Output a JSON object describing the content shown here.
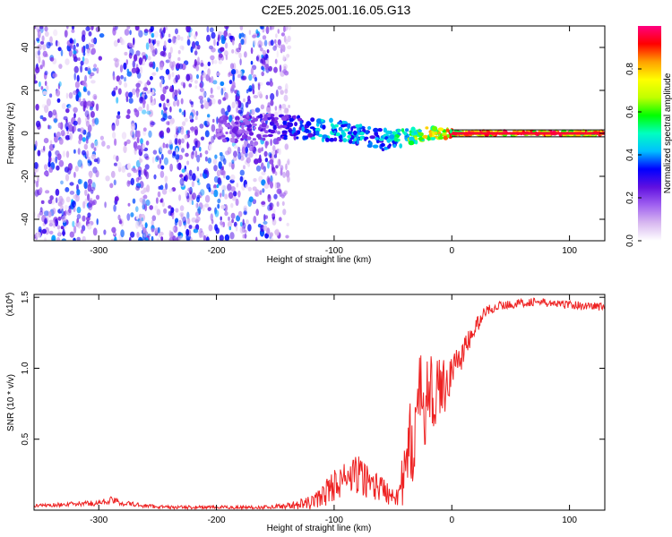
{
  "title": "C2E5.2025.001.16.05.G13",
  "chart_data": [
    {
      "type": "heatmap",
      "xlabel": "Height of straight line (km)",
      "ylabel": "Frequency (Hz)",
      "xlim": [
        -355,
        130
      ],
      "ylim": [
        -50,
        50
      ],
      "x_ticks": [
        -300,
        -200,
        -100,
        0,
        100
      ],
      "y_ticks": [
        -40,
        -20,
        0,
        20,
        40
      ],
      "colorbar": {
        "label": "Normalized spectral amplitude",
        "range": [
          0,
          1
        ],
        "ticks": [
          "0.0",
          "0.2",
          "0.4",
          "0.6",
          "0.8"
        ],
        "tick_values": [
          0.0,
          0.2,
          0.4,
          0.6,
          0.8
        ],
        "colors": [
          "#ffffff",
          "#d8b8f0",
          "#a060f0",
          "#6010e0",
          "#0000ff",
          "#00c0ff",
          "#00ffc0",
          "#00ff00",
          "#c0ff00",
          "#ffff00",
          "#ffa000",
          "#ff0000",
          "#ff0080"
        ]
      },
      "noise_region_x": [
        -355,
        -138
      ],
      "signal_band": {
        "x": [
          -200,
          -150,
          -120,
          -90,
          -60,
          -40,
          -20,
          0,
          50,
          100,
          130
        ],
        "freq_center": [
          2,
          3,
          2,
          1,
          -3,
          -2,
          0,
          0,
          0,
          0,
          0
        ],
        "amplitude": [
          0.2,
          0.3,
          0.45,
          0.5,
          0.45,
          0.6,
          0.8,
          0.95,
          0.95,
          0.95,
          0.95
        ]
      }
    },
    {
      "type": "line",
      "xlabel": "Height of straight line (km)",
      "ylabel": "SNR (10 * v/v)",
      "y_multiplier_label": "(x10",
      "y_multiplier_exp": "4",
      "xlim": [
        -355,
        130
      ],
      "ylim": [
        0,
        1.52
      ],
      "x_ticks": [
        -300,
        -200,
        -100,
        0,
        100
      ],
      "y_ticks": [
        0.5,
        1.0,
        1.5
      ],
      "y_tick_labels": [
        "0.5",
        "1.0",
        "1.5"
      ],
      "line_color": "#ee2222",
      "series": [
        {
          "x": [
            -355,
            -330,
            -300,
            -290,
            -280,
            -260,
            -240,
            -220,
            -200,
            -180,
            -160,
            -140,
            -120,
            -110,
            -100,
            -90,
            -80,
            -70,
            -60,
            -50,
            -45,
            -40,
            -35,
            -30,
            -25,
            -20,
            -15,
            -10,
            -5,
            0,
            5,
            10,
            15,
            20,
            25,
            30,
            40,
            50,
            60,
            70,
            80,
            90,
            100,
            110,
            120,
            130
          ],
          "y": [
            0.03,
            0.04,
            0.05,
            0.07,
            0.05,
            0.03,
            0.02,
            0.02,
            0.02,
            0.02,
            0.02,
            0.03,
            0.05,
            0.1,
            0.18,
            0.22,
            0.25,
            0.2,
            0.15,
            0.12,
            0.14,
            0.22,
            0.45,
            0.65,
            0.78,
            0.8,
            0.82,
            0.85,
            0.9,
            0.98,
            1.05,
            1.12,
            1.2,
            1.28,
            1.36,
            1.41,
            1.44,
            1.45,
            1.46,
            1.47,
            1.46,
            1.45,
            1.45,
            1.44,
            1.44,
            1.43
          ],
          "noise_amp": [
            0.01,
            0.015,
            0.02,
            0.03,
            0.02,
            0.015,
            0.012,
            0.012,
            0.012,
            0.012,
            0.012,
            0.02,
            0.05,
            0.08,
            0.12,
            0.12,
            0.14,
            0.12,
            0.1,
            0.09,
            0.12,
            0.22,
            0.35,
            0.4,
            0.35,
            0.3,
            0.25,
            0.22,
            0.2,
            0.15,
            0.12,
            0.1,
            0.08,
            0.07,
            0.05,
            0.04,
            0.03,
            0.03,
            0.03,
            0.03,
            0.03,
            0.03,
            0.03,
            0.03,
            0.03,
            0.03
          ]
        }
      ]
    }
  ]
}
